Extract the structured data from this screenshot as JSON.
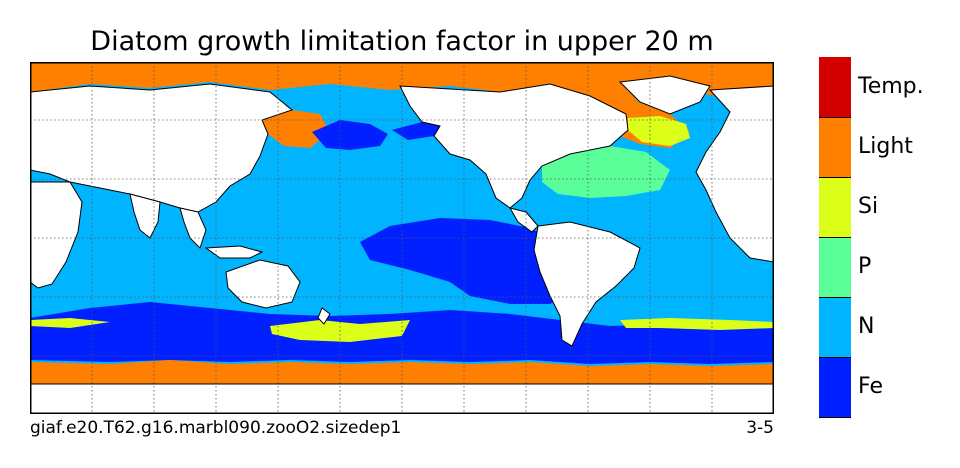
{
  "title": "Diatom growth limitation factor in upper 20 m",
  "footer": {
    "left": "giaf.e20.T62.g16.marbl090.zooO2.sizedep1",
    "right": "3-5"
  },
  "legend": {
    "categories": [
      {
        "label": "Temp.",
        "color": "#d40000"
      },
      {
        "label": "Light",
        "color": "#ff8000"
      },
      {
        "label": "Si",
        "color": "#dcff1a"
      },
      {
        "label": "P",
        "color": "#5aff9a"
      },
      {
        "label": "N",
        "color": "#00b4ff"
      },
      {
        "label": "Fe",
        "color": "#0020ff"
      }
    ]
  },
  "map": {
    "land_color": "#ffffff",
    "coastline_color": "#000000",
    "grid": true,
    "grid_style": "dotted"
  }
}
